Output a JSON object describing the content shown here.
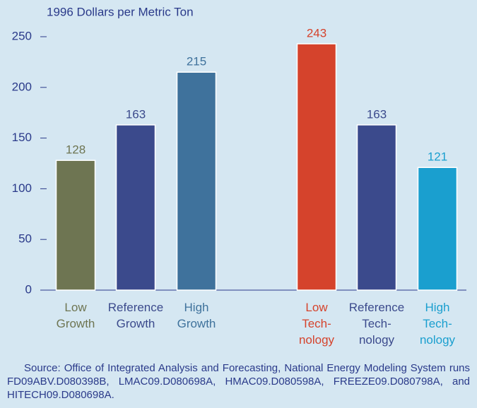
{
  "chart_data": {
    "type": "bar",
    "subtitle": "1996 Dollars per Metric Ton",
    "categories": [
      "Low\nGrowth",
      "Reference\nGrowth",
      "High\nGrowth",
      "Low\nTech-\nnology",
      "Reference\nTech-\nnology",
      "High\nTech-\nnology"
    ],
    "values": [
      128,
      163,
      215,
      243,
      163,
      121
    ],
    "colors": [
      "#6e7552",
      "#3b4a8c",
      "#3f729c",
      "#d5432c",
      "#3b4a8c",
      "#1a9fcf"
    ],
    "ylim": [
      0,
      250
    ],
    "yticks": [
      0,
      50,
      100,
      150,
      200,
      250
    ],
    "source": "Source: Office of Integrated Analysis and Forecasting, National Energy Modeling System runs FD09ABV.D080398B, LMAC09.D080698A, HMAC09.D080598A, FREEZE09.D080798A, and HITECH09.D080698A."
  }
}
